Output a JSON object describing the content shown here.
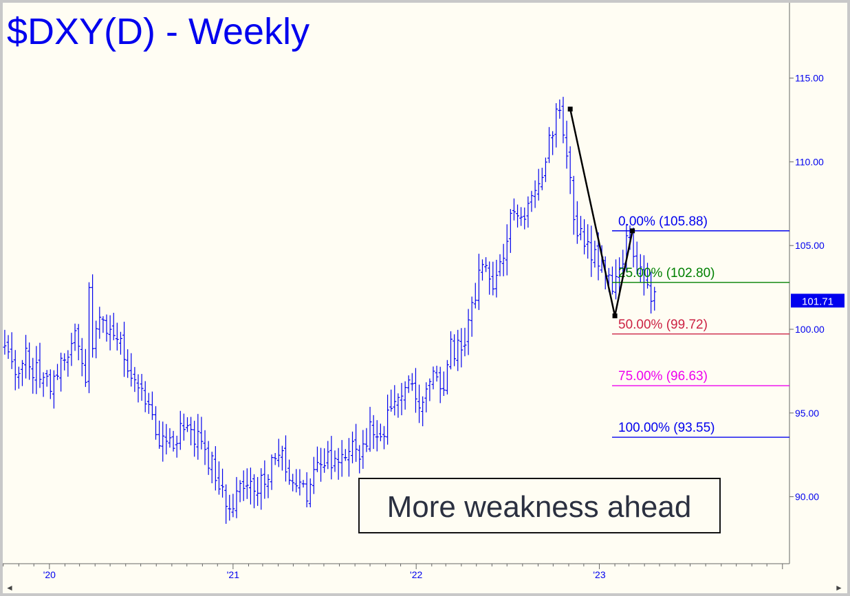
{
  "chart_data": {
    "type": "ohlc-bar",
    "title": "$DXY(D) - Weekly",
    "annotation": "More weakness ahead",
    "y_range": [
      86.0,
      119.5
    ],
    "y_ticks": [
      "115.00",
      "110.00",
      "105.00",
      "100.00",
      "95.00",
      "90.00"
    ],
    "y_tick_values": [
      115,
      110,
      105,
      100,
      95,
      90
    ],
    "x_range": [
      "2019-09-30",
      "2024-01-15"
    ],
    "x_ticks": [
      {
        "label": "'20",
        "date": "2020-01-01"
      },
      {
        "label": "'21",
        "date": "2021-01-01"
      },
      {
        "label": "'22",
        "date": "2022-01-01"
      },
      {
        "label": "'23",
        "date": "2023-01-01"
      }
    ],
    "last_price": "101.71",
    "last_price_value": 101.71,
    "series": [
      {
        "values": [
          [
            "2019-10-04",
            98.7
          ],
          [
            "2019-10-25",
            97.8
          ],
          [
            "2019-11-15",
            98.2
          ],
          [
            "2019-12-06",
            97.6
          ],
          [
            "2019-12-27",
            96.6
          ],
          [
            "2020-01-17",
            97.2
          ],
          [
            "2020-02-07",
            98.6
          ],
          [
            "2020-02-21",
            99.4
          ],
          [
            "2020-03-13",
            96.8
          ],
          [
            "2020-03-20",
            102.8
          ],
          [
            "2020-03-27",
            98.4
          ],
          [
            "2020-04-10",
            100.5
          ],
          [
            "2020-05-01",
            99.8
          ],
          [
            "2020-05-22",
            99.6
          ],
          [
            "2020-06-12",
            97.2
          ],
          [
            "2020-07-03",
            96.9
          ],
          [
            "2020-07-24",
            94.4
          ],
          [
            "2020-08-14",
            93.2
          ],
          [
            "2020-09-04",
            92.8
          ],
          [
            "2020-09-25",
            94.6
          ],
          [
            "2020-10-16",
            93.7
          ],
          [
            "2020-11-06",
            92.5
          ],
          [
            "2020-11-27",
            91.4
          ],
          [
            "2020-12-18",
            90.0
          ],
          [
            "2021-01-08",
            89.9
          ],
          [
            "2021-01-29",
            90.5
          ],
          [
            "2021-02-19",
            90.2
          ],
          [
            "2021-03-12",
            91.6
          ],
          [
            "2021-03-31",
            93.2
          ],
          [
            "2021-04-16",
            91.6
          ],
          [
            "2021-05-07",
            90.4
          ],
          [
            "2021-05-28",
            89.9
          ],
          [
            "2021-06-18",
            92.1
          ],
          [
            "2021-07-09",
            92.4
          ],
          [
            "2021-07-30",
            92.2
          ],
          [
            "2021-08-20",
            93.3
          ],
          [
            "2021-09-10",
            92.6
          ],
          [
            "2021-10-01",
            94.1
          ],
          [
            "2021-10-22",
            93.8
          ],
          [
            "2021-11-12",
            95.2
          ],
          [
            "2021-11-26",
            96.1
          ],
          [
            "2021-12-17",
            96.5
          ],
          [
            "2022-01-07",
            95.8
          ],
          [
            "2022-01-28",
            97.3
          ],
          [
            "2022-02-18",
            96.1
          ],
          [
            "2022-03-11",
            98.8
          ],
          [
            "2022-04-01",
            98.6
          ],
          [
            "2022-04-22",
            101.2
          ],
          [
            "2022-05-13",
            104.5
          ],
          [
            "2022-06-03",
            102.2
          ],
          [
            "2022-06-24",
            104.2
          ],
          [
            "2022-07-15",
            107.6
          ],
          [
            "2022-08-05",
            106.1
          ],
          [
            "2022-08-26",
            108.7
          ],
          [
            "2022-09-16",
            109.9
          ],
          [
            "2022-09-30",
            112.1
          ],
          [
            "2022-10-14",
            113.1
          ],
          [
            "2022-10-28",
            110.8
          ],
          [
            "2022-11-11",
            106.4
          ],
          [
            "2022-11-25",
            105.9
          ],
          [
            "2022-12-16",
            104.4
          ],
          [
            "2023-01-06",
            103.9
          ],
          [
            "2023-01-27",
            101.9
          ],
          [
            "2023-02-03",
            102.9
          ],
          [
            "2023-02-24",
            105.2
          ],
          [
            "2023-03-10",
            104.8
          ],
          [
            "2023-03-24",
            103.1
          ],
          [
            "2023-04-07",
            102.1
          ],
          [
            "2023-04-21",
            101.71
          ]
        ]
      }
    ],
    "swing_line": [
      [
        "2022-11-04",
        113.15
      ],
      [
        "2023-02-01",
        100.8
      ],
      [
        "2023-03-08",
        105.88
      ]
    ],
    "fib_levels": [
      {
        "label": "0.00% (105.88)",
        "value": 105.88,
        "color": "#0000ee"
      },
      {
        "label": "25.00% (102.80)",
        "value": 102.8,
        "color": "#008000"
      },
      {
        "label": "50.00% (99.72)",
        "value": 99.72,
        "color": "#cc2244"
      },
      {
        "label": "75.00% (96.63)",
        "value": 96.63,
        "color": "#ee00ee"
      },
      {
        "label": "100.00% (93.55)",
        "value": 93.55,
        "color": "#0000ee"
      }
    ],
    "colors": {
      "background": "#fffdf3",
      "bars": "#0000ee",
      "title": "#0000ee",
      "axis_text": "#0000ee",
      "swing_line": "#000000"
    }
  }
}
